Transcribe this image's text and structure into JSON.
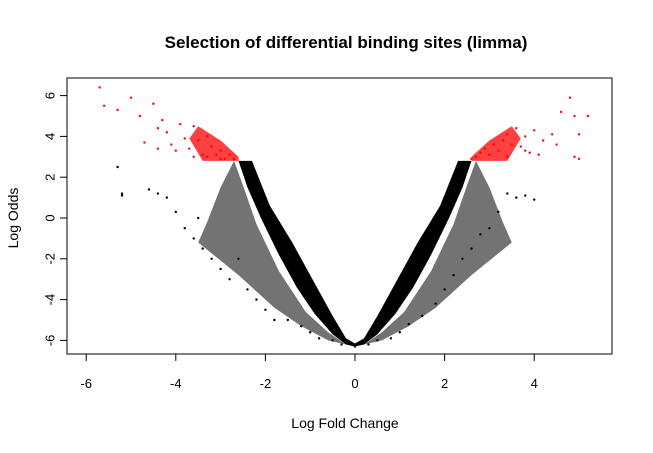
{
  "chart_data": {
    "type": "scatter",
    "title": "Selection of differential binding sites (limma)",
    "xlabel": "Log Fold Change",
    "ylabel": "Log Odds",
    "xlim": [
      -6,
      5.5
    ],
    "ylim": [
      -6.5,
      6.8
    ],
    "xticks": [
      -6,
      -4,
      -2,
      0,
      2,
      4
    ],
    "yticks": [
      -6,
      -4,
      -2,
      0,
      2,
      4,
      6
    ],
    "xtick_labels": [
      "-6",
      "-4",
      "-2",
      "0",
      "2",
      "4"
    ],
    "ytick_labels": [
      "-6",
      "-4",
      "-2",
      "0",
      "2",
      "4",
      "6"
    ],
    "grid": false,
    "legend": "none",
    "selection_threshold_log_odds": 2.8,
    "colors": {
      "selected": "#ff0000",
      "background": "#000000"
    },
    "series": [
      {
        "role": "not selected",
        "color": "#000000",
        "x": [
          -5.3,
          -5.2,
          -5.2,
          -4.6,
          -4.4,
          -4.2,
          -4.0,
          -3.8,
          -3.6,
          -3.5,
          -3.4,
          -3.2,
          -3.0,
          -2.8,
          -2.6,
          -2.4,
          -2.2,
          -2.0,
          -1.8,
          -1.5,
          -1.2,
          -1.0,
          -0.8,
          -0.5,
          -0.3,
          0.0,
          0.3,
          0.5,
          0.8,
          1.0,
          1.2,
          1.5,
          1.8,
          2.0,
          2.2,
          2.4,
          2.6,
          2.8,
          3.0,
          3.2,
          3.4,
          3.6,
          3.8,
          4.0
        ],
        "y": [
          2.5,
          1.1,
          1.2,
          1.4,
          1.2,
          1.0,
          0.3,
          -0.5,
          -1.0,
          0.0,
          -1.5,
          -2.0,
          -2.5,
          -3.0,
          -2.0,
          -3.5,
          -4.0,
          -4.5,
          -5.0,
          -5.0,
          -5.3,
          -5.6,
          -5.9,
          -6.0,
          -6.2,
          -6.3,
          -6.2,
          -6.0,
          -5.9,
          -5.6,
          -5.2,
          -4.8,
          -4.2,
          -3.5,
          -2.8,
          -2.0,
          -1.5,
          -0.8,
          -0.5,
          0.3,
          1.2,
          1.0,
          1.1,
          0.9
        ]
      },
      {
        "role": "selected",
        "color": "#ff0000",
        "x": [
          -5.7,
          -5.6,
          -5.3,
          -5.0,
          -4.8,
          -4.5,
          -4.4,
          -4.3,
          -4.2,
          -4.0,
          -3.9,
          -3.8,
          -3.7,
          -3.6,
          -3.5,
          -3.4,
          -3.3,
          -3.2,
          -3.1,
          -3.0,
          -2.9,
          -2.8,
          -2.7,
          -4.1,
          -3.6,
          -3.3,
          -3.0,
          -4.7,
          -4.4,
          2.6,
          2.7,
          2.8,
          2.9,
          3.0,
          3.1,
          3.2,
          3.3,
          3.4,
          3.5,
          3.6,
          3.7,
          3.8,
          3.9,
          4.0,
          4.2,
          4.4,
          4.6,
          4.8,
          4.9,
          5.0,
          5.2,
          3.4,
          3.8,
          4.1,
          4.5,
          4.9,
          5.0
        ],
        "y": [
          6.4,
          5.5,
          5.3,
          5.9,
          5.0,
          5.6,
          4.4,
          4.8,
          4.2,
          3.3,
          4.6,
          3.9,
          3.4,
          4.5,
          3.8,
          3.1,
          4.0,
          3.5,
          3.1,
          3.3,
          2.9,
          3.1,
          2.9,
          3.6,
          3.0,
          3.0,
          2.9,
          3.7,
          3.4,
          2.9,
          3.0,
          3.2,
          3.4,
          3.1,
          3.6,
          3.3,
          3.8,
          4.1,
          3.6,
          4.4,
          3.5,
          4.0,
          3.2,
          4.3,
          3.8,
          4.1,
          5.2,
          5.9,
          5.0,
          4.1,
          5.0,
          3.0,
          3.3,
          3.1,
          3.6,
          3.0,
          2.9
        ]
      }
    ]
  }
}
